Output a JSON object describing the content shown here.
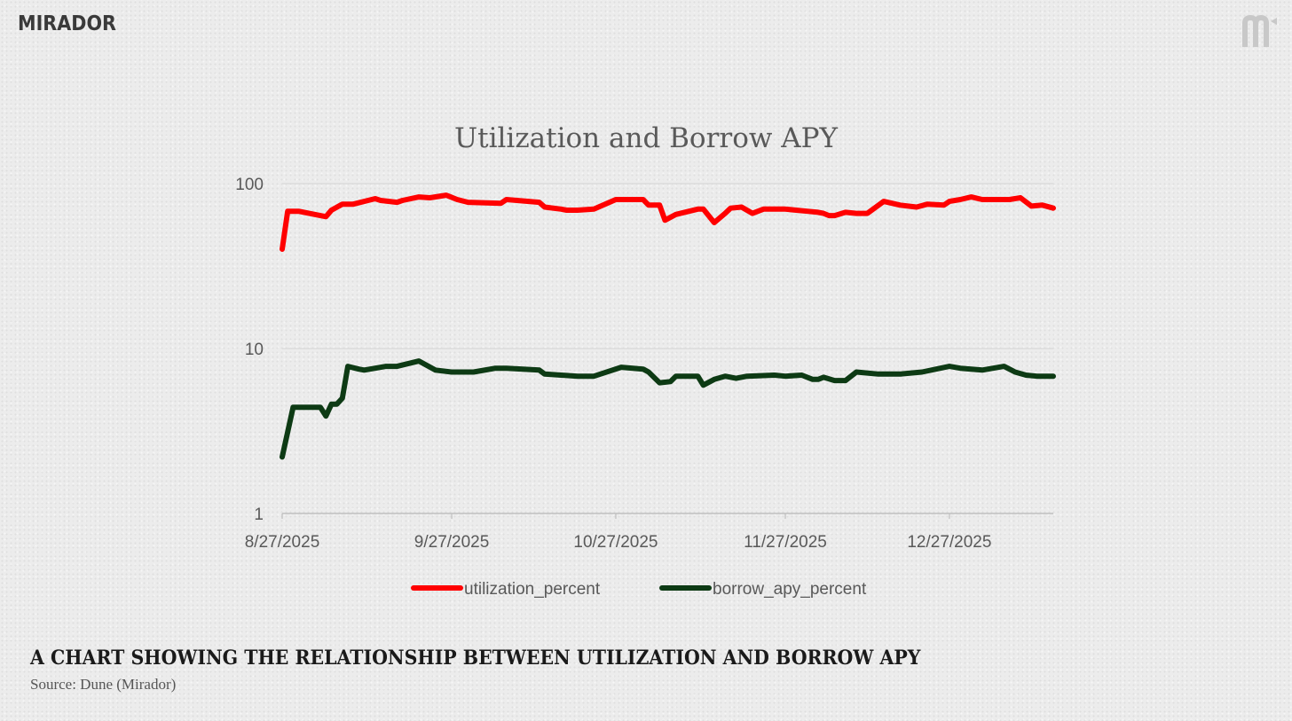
{
  "brand": {
    "wordmark": "MIRADOR",
    "logo_icon": "mirador-m-logo-icon",
    "wordmark_color": "#3a3a3a",
    "logo_color": "#c8c8c8"
  },
  "caption": {
    "title": "A CHART SHOWING THE RELATIONSHIP BETWEEN UTILIZATION AND BORROW APY",
    "source": "Source: Dune (Mirador)"
  },
  "chart_data": {
    "type": "line",
    "title": "Utilization and Borrow APY",
    "xlabel": "",
    "ylabel": "",
    "y_scale": "log",
    "ylim": [
      1,
      100
    ],
    "y_ticks": [
      1,
      10,
      100
    ],
    "y_tick_labels": [
      "1",
      "10",
      "100"
    ],
    "x_range": [
      "2025-08-27",
      "2026-01-15"
    ],
    "x_ticks": [
      "2025-08-27",
      "2025-09-27",
      "2025-10-27",
      "2025-11-27",
      "2025-12-27"
    ],
    "x_tick_labels": [
      "8/27/2025",
      "9/27/2025",
      "10/27/2025",
      "11/27/2025",
      "12/27/2025"
    ],
    "grid": "horizontal",
    "legend": "bottom",
    "series": [
      {
        "name": "utilization_percent",
        "color": "#ff0000",
        "x": [
          "2025-08-27",
          "2025-08-28",
          "2025-08-30",
          "2025-09-04",
          "2025-09-05",
          "2025-09-07",
          "2025-09-09",
          "2025-09-13",
          "2025-09-14",
          "2025-09-17",
          "2025-09-18",
          "2025-09-21",
          "2025-09-23",
          "2025-09-26",
          "2025-09-28",
          "2025-09-30",
          "2025-10-06",
          "2025-10-07",
          "2025-10-13",
          "2025-10-14",
          "2025-10-17",
          "2025-10-18",
          "2025-10-20",
          "2025-10-23",
          "2025-10-27",
          "2025-10-28",
          "2025-11-01",
          "2025-11-02",
          "2025-11-04",
          "2025-11-05",
          "2025-11-07",
          "2025-11-11",
          "2025-11-12",
          "2025-11-14",
          "2025-11-16",
          "2025-11-17",
          "2025-11-19",
          "2025-11-21",
          "2025-11-23",
          "2025-11-25",
          "2025-11-27",
          "2025-11-29",
          "2025-12-01",
          "2025-12-03",
          "2025-12-04",
          "2025-12-05",
          "2025-12-06",
          "2025-12-08",
          "2025-12-10",
          "2025-12-12",
          "2025-12-15",
          "2025-12-18",
          "2025-12-21",
          "2025-12-23",
          "2025-12-26",
          "2025-12-27",
          "2025-12-29",
          "2025-12-31",
          "2026-01-02",
          "2026-01-05",
          "2026-01-07",
          "2026-01-09",
          "2026-01-11",
          "2026-01-13",
          "2026-01-15"
        ],
        "values": [
          40,
          68,
          68,
          63,
          69,
          75,
          75,
          81,
          79,
          77,
          79,
          83,
          82,
          85,
          80,
          77,
          76,
          80,
          77,
          72,
          70,
          69,
          69,
          70,
          80,
          80,
          80,
          74,
          74,
          60,
          65,
          70,
          70,
          58,
          66,
          71,
          72,
          66,
          70,
          70,
          70,
          69,
          68,
          67,
          66,
          64,
          64,
          67,
          66,
          66,
          78,
          74,
          72,
          75,
          74,
          78,
          80,
          83,
          80,
          80,
          80,
          82,
          73,
          74,
          71
        ]
      },
      {
        "name": "borrow_apy_percent",
        "color": "#0d3a14",
        "x": [
          "2025-08-27",
          "2025-08-29",
          "2025-09-03",
          "2025-09-04",
          "2025-09-05",
          "2025-09-06",
          "2025-09-07",
          "2025-09-08",
          "2025-09-10",
          "2025-09-11",
          "2025-09-13",
          "2025-09-15",
          "2025-09-17",
          "2025-09-21",
          "2025-09-24",
          "2025-09-27",
          "2025-10-01",
          "2025-10-05",
          "2025-10-07",
          "2025-10-13",
          "2025-10-14",
          "2025-10-17",
          "2025-10-20",
          "2025-10-23",
          "2025-10-28",
          "2025-11-01",
          "2025-11-02",
          "2025-11-04",
          "2025-11-06",
          "2025-11-07",
          "2025-11-11",
          "2025-11-12",
          "2025-11-14",
          "2025-11-16",
          "2025-11-18",
          "2025-11-20",
          "2025-11-25",
          "2025-11-27",
          "2025-11-30",
          "2025-12-02",
          "2025-12-03",
          "2025-12-04",
          "2025-12-06",
          "2025-12-08",
          "2025-12-10",
          "2025-12-14",
          "2025-12-18",
          "2025-12-22",
          "2025-12-27",
          "2025-12-29",
          "2026-01-02",
          "2026-01-06",
          "2026-01-08",
          "2026-01-10",
          "2026-01-12",
          "2026-01-15"
        ],
        "values": [
          2.2,
          4.4,
          4.4,
          3.9,
          4.6,
          4.6,
          5.0,
          7.8,
          7.5,
          7.4,
          7.6,
          7.8,
          7.8,
          8.4,
          7.4,
          7.2,
          7.2,
          7.6,
          7.6,
          7.4,
          7.0,
          6.9,
          6.8,
          6.8,
          7.7,
          7.5,
          7.2,
          6.2,
          6.3,
          6.8,
          6.8,
          6.0,
          6.5,
          6.8,
          6.6,
          6.8,
          6.9,
          6.8,
          6.9,
          6.5,
          6.5,
          6.7,
          6.4,
          6.4,
          7.2,
          7.0,
          7.0,
          7.2,
          7.8,
          7.6,
          7.4,
          7.8,
          7.2,
          6.9,
          6.8,
          6.8
        ]
      }
    ]
  }
}
